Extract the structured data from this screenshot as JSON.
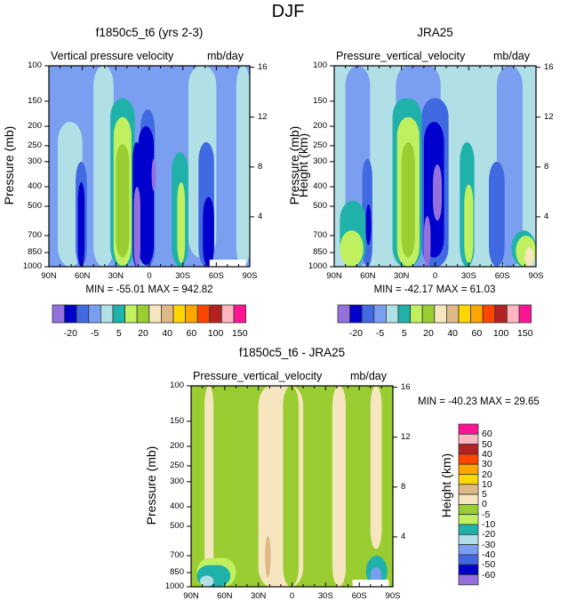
{
  "figure": {
    "title": "DJF"
  },
  "chart_data": [
    {
      "type": "heatmap",
      "id": "model",
      "title": "f1850c5_t6 (yrs 2-3)",
      "left_label": "Vertical pressure velocity",
      "right_label": "mb/day",
      "ylabel": "Pressure (mb)",
      "ylabel_right": "Height (km)",
      "xticks": [
        "90N",
        "60N",
        "30N",
        "0",
        "30S",
        "60S",
        "90S"
      ],
      "xlim": [
        90,
        -90
      ],
      "yticks": [
        100,
        150,
        200,
        250,
        300,
        400,
        500,
        700,
        850,
        1000
      ],
      "ylim": [
        1000,
        100
      ],
      "yticks_right": [
        16,
        12,
        8,
        4
      ],
      "min": -55.01,
      "max": 942.82,
      "minmax_text": "MIN = -55.01  MAX = 942.82",
      "background_level": "-5..-10",
      "regions": [
        {
          "lat": [
            82,
            60
          ],
          "p": [
            190,
            1000
          ],
          "color": "#b0e0e6"
        },
        {
          "lat": [
            50,
            32
          ],
          "p": [
            100,
            1000
          ],
          "color": "#b0e0e6"
        },
        {
          "lat": [
            -35,
            -60
          ],
          "p": [
            100,
            900
          ],
          "color": "#b0e0e6"
        },
        {
          "lat": [
            -78,
            -90
          ],
          "p": [
            100,
            1000
          ],
          "color": "#b0e0e6"
        },
        {
          "lat": [
            35,
            13
          ],
          "p": [
            145,
            1000
          ],
          "color": "#20b2aa"
        },
        {
          "lat": [
            32,
            16
          ],
          "p": [
            180,
            990
          ],
          "color": "#c0f060"
        },
        {
          "lat": [
            30,
            18
          ],
          "p": [
            245,
            900
          ],
          "color": "#9acd32"
        },
        {
          "lat": [
            8,
            -5
          ],
          "p": [
            165,
            1000
          ],
          "color": "#4169e1"
        },
        {
          "lat": [
            10,
            -4
          ],
          "p": [
            200,
            980
          ],
          "color": "#0000cd"
        },
        {
          "lat": [
            -2,
            -6
          ],
          "p": [
            290,
            420
          ],
          "color": "#9370db"
        },
        {
          "lat": [
            -20,
            -35
          ],
          "p": [
            270,
            1000
          ],
          "color": "#20b2aa"
        },
        {
          "lat": [
            -25,
            -32
          ],
          "p": [
            380,
            960
          ],
          "color": "#c0f060"
        },
        {
          "lat": [
            -44,
            -58
          ],
          "p": [
            240,
            1000
          ],
          "color": "#4169e1"
        },
        {
          "lat": [
            -48,
            -58
          ],
          "p": [
            450,
            1000
          ],
          "color": "#0000cd"
        },
        {
          "lat": [
            66,
            56
          ],
          "p": [
            300,
            1000
          ],
          "color": "#4169e1"
        },
        {
          "lat": [
            64,
            58
          ],
          "p": [
            380,
            1000
          ],
          "color": "#0000cd"
        },
        {
          "lat": [
            15,
            8
          ],
          "p": [
            240,
            1000
          ],
          "color": "#0000cd"
        },
        {
          "lat": [
            14,
            8
          ],
          "p": [
            400,
            1000
          ],
          "color": "#9370db"
        }
      ]
    },
    {
      "type": "heatmap",
      "id": "obs",
      "title": "JRA25",
      "left_label": "Pressure_vertical_velocity",
      "right_label": "mb/day",
      "ylabel": "Pressure (mb)",
      "ylabel_right": "Height (km)",
      "xticks": [
        "90N",
        "60N",
        "30N",
        "0",
        "30S",
        "60S",
        "90S"
      ],
      "xlim": [
        90,
        -90
      ],
      "yticks": [
        100,
        150,
        200,
        250,
        300,
        400,
        500,
        700,
        850,
        1000
      ],
      "ylim": [
        1000,
        100
      ],
      "yticks_right": [
        16,
        12,
        8,
        4
      ],
      "min": -42.17,
      "max": 61.03,
      "minmax_text": "MIN = -42.17  MAX =  61.03",
      "background_level": "-10..-20",
      "regions": [
        {
          "lat": [
            80,
            58
          ],
          "p": [
            100,
            1000
          ],
          "color": "#7b9ff0"
        },
        {
          "lat": [
            35,
            -5
          ],
          "p": [
            100,
            1000
          ],
          "color": "#7b9ff0"
        },
        {
          "lat": [
            -55,
            -78
          ],
          "p": [
            100,
            1000
          ],
          "color": "#7b9ff0"
        },
        {
          "lat": [
            65,
            56
          ],
          "p": [
            290,
            1000
          ],
          "color": "#4169e1"
        },
        {
          "lat": [
            62,
            57
          ],
          "p": [
            490,
            780
          ],
          "color": "#0000cd"
        },
        {
          "lat": [
            38,
            12
          ],
          "p": [
            145,
            1000
          ],
          "color": "#20b2aa"
        },
        {
          "lat": [
            34,
            14
          ],
          "p": [
            180,
            1000
          ],
          "color": "#c0f060"
        },
        {
          "lat": [
            30,
            18
          ],
          "p": [
            240,
            900
          ],
          "color": "#9acd32"
        },
        {
          "lat": [
            12,
            -12
          ],
          "p": [
            145,
            1000
          ],
          "color": "#4169e1"
        },
        {
          "lat": [
            10,
            -8
          ],
          "p": [
            190,
            900
          ],
          "color": "#0000cd"
        },
        {
          "lat": [
            2,
            -6
          ],
          "p": [
            310,
            590
          ],
          "color": "#9370db"
        },
        {
          "lat": [
            10,
            4
          ],
          "p": [
            560,
            1000
          ],
          "color": "#9370db"
        },
        {
          "lat": [
            -22,
            -35
          ],
          "p": [
            240,
            1000
          ],
          "color": "#20b2aa"
        },
        {
          "lat": [
            -26,
            -34
          ],
          "p": [
            390,
            960
          ],
          "color": "#c0f060"
        },
        {
          "lat": [
            -48,
            -62
          ],
          "p": [
            300,
            1000
          ],
          "color": "#4169e1"
        },
        {
          "lat": [
            85,
            62
          ],
          "p": [
            470,
            1000
          ],
          "color": "#20b2aa"
        },
        {
          "lat": [
            85,
            64
          ],
          "p": [
            660,
            1000
          ],
          "color": "#c0f060"
        },
        {
          "lat": [
            -68,
            -90
          ],
          "p": [
            660,
            1000
          ],
          "color": "#20b2aa"
        },
        {
          "lat": [
            -72,
            -90
          ],
          "p": [
            700,
            1000
          ],
          "color": "#c0f060"
        },
        {
          "lat": [
            -80,
            -88
          ],
          "p": [
            800,
            1000
          ],
          "color": "#f5e6c0"
        }
      ]
    },
    {
      "type": "heatmap",
      "id": "diff",
      "title": "f1850c5_t6 - JRA25",
      "left_label": "Pressure_vertical_velocity",
      "right_label": "mb/day",
      "ylabel": "Pressure (mb)",
      "ylabel_right": "Height (km)",
      "xticks": [
        "90N",
        "60N",
        "30N",
        "0",
        "30S",
        "60S",
        "90S"
      ],
      "xlim": [
        90,
        -90
      ],
      "yticks": [
        100,
        150,
        200,
        250,
        300,
        400,
        500,
        700,
        850,
        1000
      ],
      "ylim": [
        1000,
        100
      ],
      "yticks_right": [
        16,
        12,
        8,
        4
      ],
      "min": -40.23,
      "max": 29.65,
      "minmax_text": "MIN = -40.23  MAX =  29.65",
      "background_level": "-5..0",
      "regions": [
        {
          "lat": [
            78,
            70
          ],
          "p": [
            100,
            1000
          ],
          "color": "#f5e6c0"
        },
        {
          "lat": [
            30,
            -10
          ],
          "p": [
            100,
            1000
          ],
          "color": "#f5e6c0"
        },
        {
          "lat": [
            -36,
            -48
          ],
          "p": [
            100,
            1000
          ],
          "color": "#f5e6c0"
        },
        {
          "lat": [
            -70,
            -80
          ],
          "p": [
            100,
            650
          ],
          "color": "#f5e6c0"
        },
        {
          "lat": [
            2,
            -2
          ],
          "p": [
            190,
            560
          ],
          "color": "#deb887"
        },
        {
          "lat": [
            1,
            -1
          ],
          "p": [
            250,
            400
          ],
          "color": "#ffd700"
        },
        {
          "lat": [
            24,
            19
          ],
          "p": [
            560,
            900
          ],
          "color": "#deb887"
        },
        {
          "lat": [
            8,
            -6
          ],
          "p": [
            100,
            1000
          ],
          "color": "#9acd32",
          "note": "green band inside"
        },
        {
          "lat": [
            85,
            50
          ],
          "p": [
            720,
            1000
          ],
          "color": "#c0f060"
        },
        {
          "lat": [
            85,
            55
          ],
          "p": [
            780,
            1000
          ],
          "color": "#20b2aa"
        },
        {
          "lat": [
            82,
            70
          ],
          "p": [
            880,
            1000
          ],
          "color": "#b0e0e6"
        },
        {
          "lat": [
            -66,
            -85
          ],
          "p": [
            700,
            1000
          ],
          "color": "#20b2aa"
        },
        {
          "lat": [
            -70,
            -80
          ],
          "p": [
            800,
            980
          ],
          "color": "#7b9ff0"
        }
      ]
    }
  ],
  "colorbars": {
    "top": {
      "colors": [
        "#9370db",
        "#0000cd",
        "#4169e1",
        "#7b9ff0",
        "#b0e0e6",
        "#20b2aa",
        "#c0f060",
        "#9acd32",
        "#f5e6c0",
        "#deb887",
        "#ffd700",
        "#ffa500",
        "#ff4500",
        "#b22222",
        "#ffb6c1",
        "#ff1493"
      ],
      "labels": [
        "-20",
        "-5",
        "5",
        "20",
        "40",
        "60",
        "100",
        "150"
      ]
    },
    "diff": {
      "colors": [
        "#ff1493",
        "#ffb6c1",
        "#b22222",
        "#ff4500",
        "#ffa500",
        "#ffd700",
        "#deb887",
        "#f5e6c0",
        "#9acd32",
        "#c0f060",
        "#20b2aa",
        "#b0e0e6",
        "#7b9ff0",
        "#4169e1",
        "#0000cd",
        "#9370db"
      ],
      "labels": [
        "60",
        "50",
        "40",
        "30",
        "20",
        "10",
        "5",
        "0",
        "-5",
        "-10",
        "-20",
        "-30",
        "-40",
        "-50",
        "-60"
      ]
    }
  }
}
